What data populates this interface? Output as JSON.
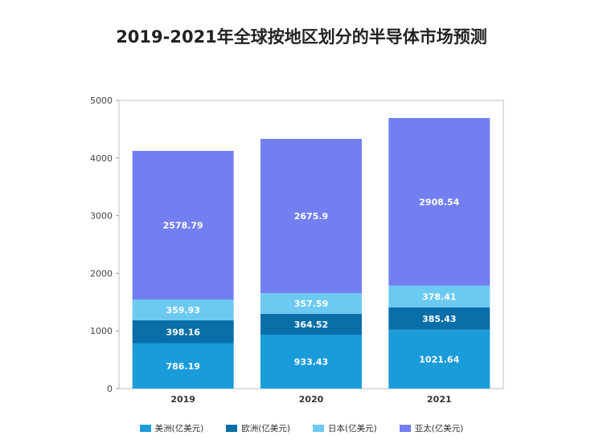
{
  "chart_data": {
    "type": "bar",
    "stacked": true,
    "title": "2019-2021年全球按地区划分的半导体市场预测",
    "xlabel": "",
    "ylabel": "",
    "categories": [
      "2019",
      "2020",
      "2021"
    ],
    "ylim": [
      0,
      5000
    ],
    "yticks": [
      0,
      1000,
      2000,
      3000,
      4000,
      5000
    ],
    "grid": false,
    "legend_position": "bottom",
    "series": [
      {
        "name": "美洲(亿美元)",
        "color": "#1a9cdb",
        "values": [
          786.19,
          933.43,
          1021.64
        ],
        "labels": [
          "786.19",
          "933.43",
          "1021.64"
        ]
      },
      {
        "name": "欧洲(亿美元)",
        "color": "#0a6fa8",
        "values": [
          398.16,
          364.52,
          385.43
        ],
        "labels": [
          "398.16",
          "364.52",
          "385.43"
        ]
      },
      {
        "name": "日本(亿美元)",
        "color": "#6cc9f2",
        "values": [
          359.93,
          357.59,
          378.41
        ],
        "labels": [
          "359.93",
          "357.59",
          "378.41"
        ]
      },
      {
        "name": "亚太(亿美元)",
        "color": "#737ff0",
        "values": [
          2578.79,
          2675.9,
          2908.54
        ],
        "labels": [
          "2578.79",
          "2675.9",
          "2908.54"
        ]
      }
    ]
  }
}
